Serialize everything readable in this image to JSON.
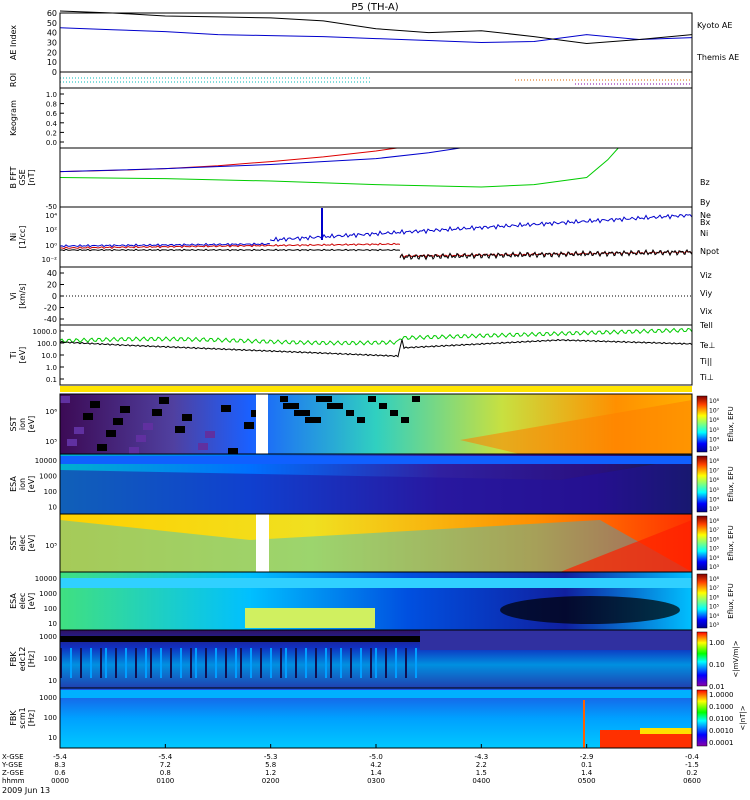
{
  "chart_data": {
    "type": "line",
    "title": "P5 (TH-A)",
    "date_label": "2009 Jun 13",
    "x_axis": {
      "row_labels": [
        "X-GSE",
        "Y-GSE",
        "Z-GSE",
        "hhmm"
      ],
      "ticks": [
        {
          "x": "-5.4",
          "y": "8.3",
          "z": "0.6",
          "hhmm": "0000"
        },
        {
          "x": "-5.4",
          "y": "7.2",
          "z": "0.8",
          "hhmm": "0100"
        },
        {
          "x": "-5.3",
          "y": "5.8",
          "z": "1.2",
          "hhmm": "0200"
        },
        {
          "x": "-5.0",
          "y": "4.2",
          "z": "1.4",
          "hhmm": "0300"
        },
        {
          "x": "-4.3",
          "y": "2.2",
          "z": "1.5",
          "hhmm": "0400"
        },
        {
          "x": "-2.9",
          "y": "0.1",
          "z": "1.4",
          "hhmm": "0500"
        },
        {
          "x": "-0.4",
          "y": "-1.5",
          "z": "0.2",
          "hhmm": "0600"
        }
      ],
      "range_hours": [
        0,
        6
      ]
    },
    "panels": [
      {
        "id": "ae",
        "ylabel": "AE Index",
        "ylim": [
          0,
          60
        ],
        "ticks": [
          "0",
          "10",
          "20",
          "30",
          "40",
          "50",
          "60"
        ],
        "legend": [
          "Kyoto AE",
          "Themis AE"
        ],
        "series": [
          {
            "name": "Kyoto AE",
            "color": "#0000cc",
            "x": [
              0,
              0.5,
              1,
              1.5,
              2,
              2.5,
              3,
              3.5,
              4,
              4.5,
              5,
              5.5,
              6
            ],
            "y": [
              45,
              43,
              41,
              38,
              37,
              36,
              34,
              32,
              30,
              31,
              38,
              33,
              35
            ]
          },
          {
            "name": "Themis AE",
            "color": "#000000",
            "x": [
              0,
              0.5,
              1,
              1.5,
              2,
              2.5,
              3,
              3.5,
              4,
              4.5,
              5,
              5.5,
              6
            ],
            "y": [
              62,
              60,
              57,
              56,
              55,
              52,
              44,
              40,
              42,
              36,
              29,
              33,
              38
            ]
          }
        ]
      },
      {
        "id": "roi",
        "ylabel": "ROI"
      },
      {
        "id": "keogram",
        "ylabel": "Keogram",
        "ylim": [
          0,
          1.0
        ],
        "ticks": [
          "0.0",
          "0.2",
          "0.4",
          "0.6",
          "0.8",
          "1.0"
        ]
      },
      {
        "id": "bfgm",
        "ylabel": "B FFT GSE [nT]",
        "ylim": [
          -50,
          50
        ],
        "legend": [
          "Bz",
          "By",
          "Bx"
        ],
        "series": [
          {
            "name": "Bz",
            "color": "#dd0000",
            "x": [
              0,
              0.5,
              1,
              1.5,
              2,
              2.5,
              3,
              3.2
            ],
            "y": [
              10,
              12,
              15,
              20,
              27,
              35,
              45,
              50
            ]
          },
          {
            "name": "By",
            "color": "#0000cc",
            "x": [
              0,
              1,
              2,
              3,
              3.5,
              3.8
            ],
            "y": [
              10,
              15,
              22,
              32,
              42,
              50
            ]
          },
          {
            "name": "Bx",
            "color": "#00cc00",
            "x": [
              0,
              1,
              2,
              3,
              4,
              4.5,
              5,
              5.2,
              5.3
            ],
            "y": [
              0,
              -2,
              -6,
              -12,
              -16,
              -12,
              0,
              30,
              50
            ]
          }
        ]
      },
      {
        "id": "ni",
        "ylabel": "Ni [1/cc]",
        "legend": [
          "Ne",
          "Ni",
          "Npot"
        ],
        "series_names": [
          "Ne",
          "Ni",
          "Npot"
        ]
      },
      {
        "id": "vi",
        "ylabel": "Vi [km/s]",
        "ylim": [
          -50,
          50
        ],
        "ticks": [
          "40",
          "20",
          "0",
          "-20",
          "-40"
        ],
        "legend": [
          "Viz",
          "Viy",
          "Vix"
        ]
      },
      {
        "id": "ti",
        "ylabel": "Ti [eV]",
        "ticks": [
          "1000.0",
          "100.0",
          "10.0",
          "1.0",
          "0.1"
        ],
        "legend": [
          "Tell",
          "Te⊥",
          "Ti||",
          "Ti⊥"
        ]
      },
      {
        "id": "sst_eflux_i",
        "ylabel": "SST ion [eV]",
        "ticks": [
          "10⁶",
          "10⁵"
        ],
        "cbar_label": "Eflux, EFU"
      },
      {
        "id": "esa_eflux_i",
        "ylabel": "ESA ion [eV]",
        "ticks": [
          "10000",
          "1000",
          "100",
          "10"
        ],
        "cbar_label": "Eflux, EFU"
      },
      {
        "id": "sst_eflux_e",
        "ylabel": "SST elec [eV]",
        "ticks": [
          "10⁵"
        ],
        "cbar_label": "Eflux, EFU"
      },
      {
        "id": "esa_eflux_e",
        "ylabel": "ESA elec [eV]",
        "ticks": [
          "10000",
          "1000",
          "100",
          "10"
        ],
        "cbar_label": "Eflux, EFU"
      },
      {
        "id": "fbk_e",
        "ylabel": "FBK edc12 [Hz]",
        "ticks": [
          "1000",
          "100",
          "10"
        ],
        "cbar_ticks": [
          "1.00",
          "0.10",
          "0.01"
        ],
        "cbar_label": "<|mV/m|>"
      },
      {
        "id": "fbk_b",
        "ylabel": "FBK scm1 [Hz]",
        "ticks": [
          "1000",
          "100",
          "10"
        ],
        "cbar_ticks": [
          "1.0000",
          "0.1000",
          "0.0100",
          "0.0010",
          "0.0001"
        ],
        "cbar_label": "<|nT|>"
      }
    ],
    "eflux_cbar_ticks": [
      "10⁸",
      "10⁷",
      "10⁶",
      "10⁵",
      "10⁴",
      "10³"
    ]
  }
}
